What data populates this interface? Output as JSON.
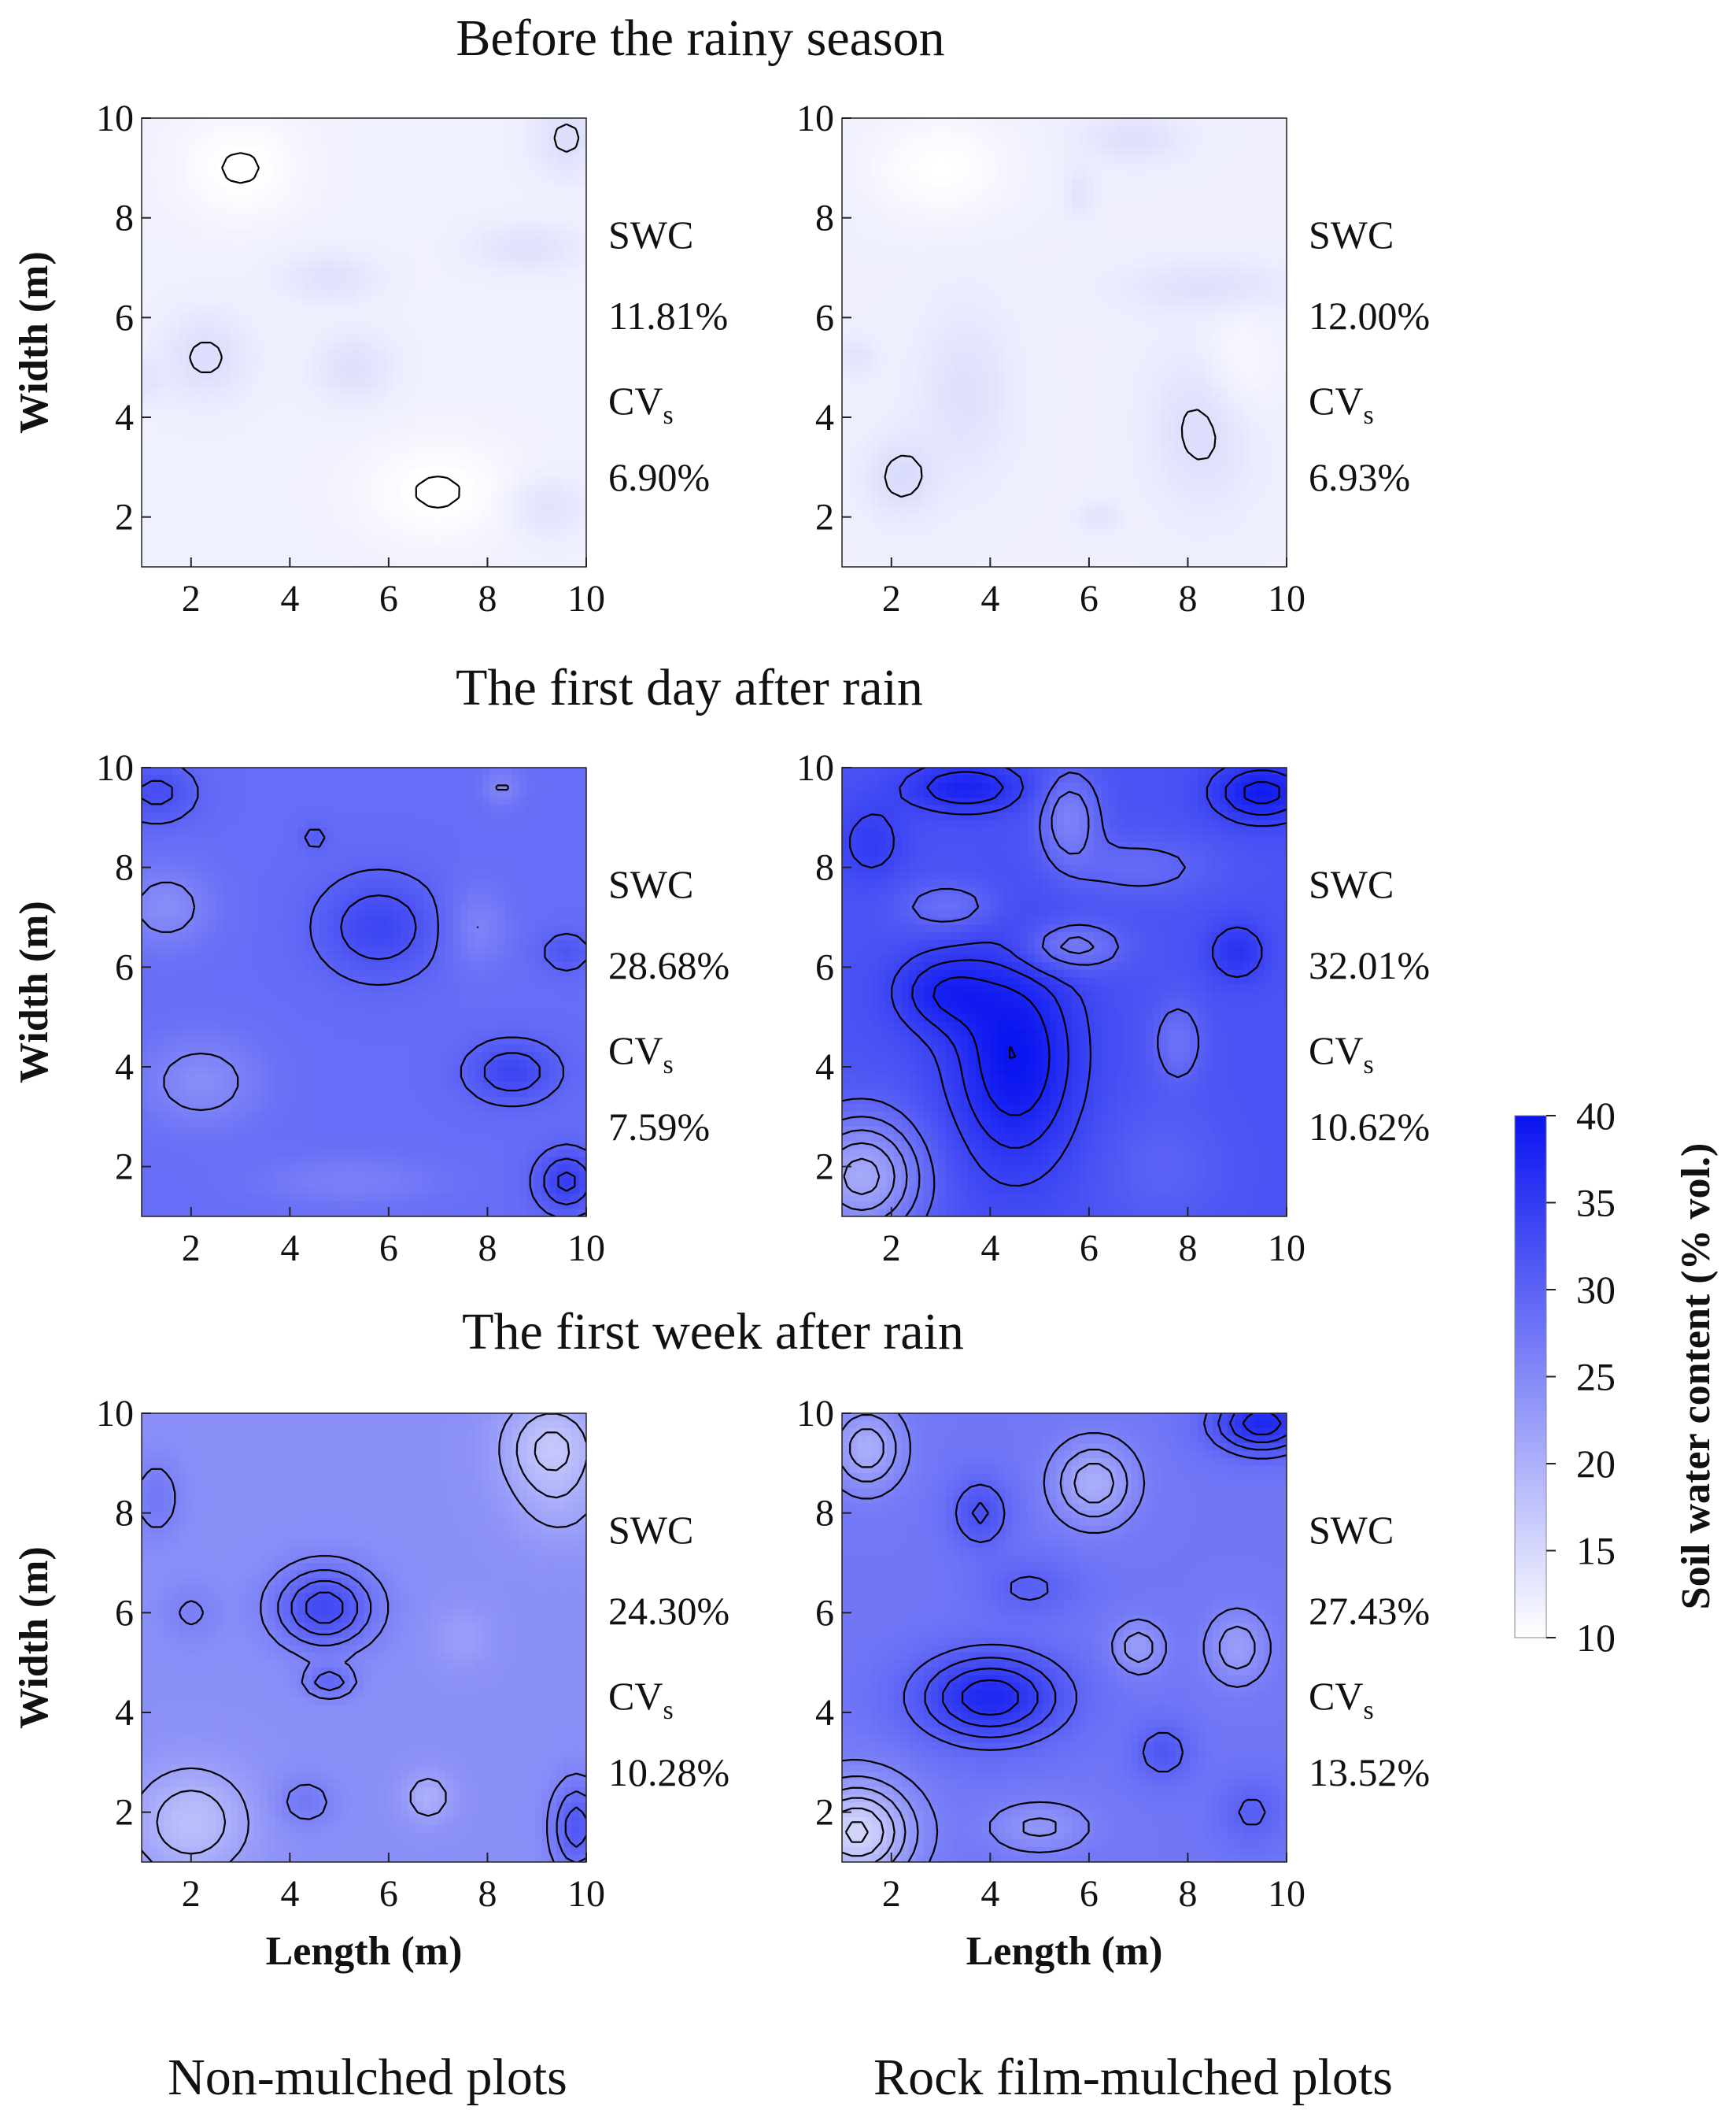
{
  "colors": {
    "low": "#ffffff",
    "high": "#0a14f0",
    "contour": "#000000"
  },
  "chart_data": {
    "type": "heatmap",
    "variable": "Soil water content",
    "row_titles": [
      "Before the rainy season",
      "The first day after rain",
      "The first week after rain"
    ],
    "column_titles": [
      "Non-mulched plots",
      "Rock film-mulched plots"
    ],
    "xlabel": "Length (m)",
    "ylabel": "Width (m)",
    "xlim": [
      1,
      10
    ],
    "ylim": [
      1,
      10
    ],
    "x_ticks": [
      "2",
      "4",
      "6",
      "8",
      "10"
    ],
    "y_ticks": [
      "2",
      "4",
      "6",
      "8",
      "10"
    ],
    "colorbar": {
      "label": "Soil water content (% vol.)",
      "min": 10,
      "max": 40,
      "ticks": [
        "10",
        "15",
        "20",
        "25",
        "30",
        "35",
        "40"
      ]
    },
    "panels": [
      {
        "row": 0,
        "col": 0,
        "swc_label": "SWC",
        "swc": "11.81%",
        "cv_label": "CV",
        "cv_sub": "s",
        "cv": "6.90%",
        "mean": 11.81,
        "blobs": [
          [
            2.3,
            5.2,
            0.9,
            0.9,
            2.5
          ],
          [
            5.3,
            5.0,
            0.8,
            0.7,
            2.2
          ],
          [
            4.8,
            6.8,
            1.0,
            0.5,
            2.0
          ],
          [
            8.8,
            7.4,
            1.1,
            0.5,
            2.0
          ],
          [
            9.6,
            9.6,
            0.7,
            0.8,
            2.5
          ],
          [
            9.2,
            2.2,
            0.8,
            0.6,
            2.0
          ],
          [
            1,
            4.7,
            0.4,
            0.5,
            1.5
          ],
          [
            3,
            9,
            1.2,
            1,
            -2
          ],
          [
            7,
            2.5,
            1.5,
            1,
            -2
          ]
        ]
      },
      {
        "row": 0,
        "col": 1,
        "swc_label": "SWC",
        "swc": "12.00%",
        "cv_label": "CV",
        "cv_sub": "s",
        "cv": "6.93%",
        "mean": 12.0,
        "blobs": [
          [
            2.2,
            2.8,
            0.7,
            0.8,
            2.5
          ],
          [
            3.5,
            4.5,
            0.9,
            1.6,
            2.0
          ],
          [
            8.3,
            3.8,
            1.0,
            1.5,
            2.5
          ],
          [
            8.4,
            6.6,
            1.6,
            0.5,
            2.0
          ],
          [
            6.9,
            9.6,
            1.0,
            0.5,
            2.0
          ],
          [
            5.8,
            8.5,
            0.3,
            0.5,
            1.5
          ],
          [
            6.2,
            2.0,
            0.4,
            0.3,
            1.5
          ],
          [
            1.3,
            5.2,
            0.4,
            0.4,
            1.5
          ],
          [
            3,
            9,
            1.4,
            1,
            -2
          ],
          [
            9,
            5,
            0.8,
            1.2,
            -1.5
          ]
        ]
      },
      {
        "row": 1,
        "col": 0,
        "swc_label": "SWC",
        "swc": "28.68%",
        "cv_label": "CV",
        "cv_sub": "s",
        "cv": "7.59%",
        "mean": 28.68,
        "blobs": [
          [
            5.8,
            6.8,
            1.2,
            1.0,
            5.0
          ],
          [
            8.5,
            3.9,
            0.9,
            0.6,
            5.0
          ],
          [
            9.6,
            1.7,
            0.6,
            0.6,
            6.0
          ],
          [
            1.3,
            9.5,
            0.8,
            0.6,
            4.0
          ],
          [
            2.2,
            3.7,
            1.2,
            0.9,
            -4.0
          ],
          [
            1.5,
            7.2,
            0.9,
            0.8,
            -4.0
          ],
          [
            7.8,
            6.8,
            0.6,
            0.8,
            -3.0
          ],
          [
            8.3,
            9.6,
            0.4,
            0.4,
            -3.0
          ],
          [
            4.5,
            8.6,
            0.3,
            0.3,
            2.0
          ],
          [
            9.6,
            6.3,
            0.5,
            0.4,
            3.0
          ],
          [
            5.2,
            1.7,
            1.8,
            0.5,
            -2.5
          ]
        ]
      },
      {
        "row": 1,
        "col": 1,
        "swc_label": "SWC",
        "swc": "32.01%",
        "cv_label": "CV",
        "cv_sub": "s",
        "cv": "10.62%",
        "mean": 32.01,
        "blobs": [
          [
            4.5,
            4.2,
            1.3,
            2.2,
            8.0
          ],
          [
            3.0,
            5.5,
            1.0,
            0.8,
            5.0
          ],
          [
            9.5,
            9.5,
            1.0,
            0.6,
            7.0
          ],
          [
            3.5,
            9.6,
            1.2,
            0.5,
            6.0
          ],
          [
            9.0,
            6.3,
            0.6,
            0.6,
            4.0
          ],
          [
            1.4,
            1.8,
            1.2,
            1.2,
            -11.0
          ],
          [
            5.6,
            9.0,
            0.6,
            0.9,
            -6.0
          ],
          [
            5.6,
            6.4,
            1.0,
            0.5,
            -6.0
          ],
          [
            7.8,
            4.5,
            0.5,
            0.8,
            -4.0
          ],
          [
            7.0,
            8.0,
            1.5,
            0.6,
            -3.0
          ],
          [
            1.6,
            8.5,
            0.7,
            0.8,
            3.0
          ],
          [
            7.5,
            2.0,
            1.2,
            1.2,
            -2.0
          ],
          [
            3.2,
            7.2,
            1.0,
            0.5,
            -4.0
          ]
        ]
      },
      {
        "row": 2,
        "col": 0,
        "swc_label": "SWC",
        "swc": "24.30%",
        "cv_label": "CV",
        "cv_sub": "s",
        "cv": "10.28%",
        "mean": 24.3,
        "blobs": [
          [
            4.7,
            6.1,
            1.0,
            0.8,
            9.0
          ],
          [
            4.8,
            4.6,
            0.5,
            0.3,
            5.0
          ],
          [
            2.0,
            1.8,
            1.2,
            1.1,
            -6.0
          ],
          [
            9.3,
            9.3,
            1.0,
            1.0,
            -7.0
          ],
          [
            9.8,
            1.7,
            0.5,
            0.9,
            7.0
          ],
          [
            4.3,
            2.2,
            0.6,
            0.5,
            3.0
          ],
          [
            1.3,
            8.3,
            0.5,
            0.8,
            3.0
          ],
          [
            2.0,
            6.0,
            0.6,
            0.6,
            2.0
          ],
          [
            6.8,
            2.3,
            0.5,
            0.5,
            -4.0
          ],
          [
            9.5,
            8.0,
            1.0,
            0.8,
            -2.0
          ],
          [
            7.5,
            5.5,
            0.6,
            0.6,
            -2.0
          ]
        ]
      },
      {
        "row": 2,
        "col": 1,
        "swc_label": "SWC",
        "swc": "27.43%",
        "cv_label": "CV",
        "cv_sub": "s",
        "cv": "13.52%",
        "mean": 27.43,
        "blobs": [
          [
            4.0,
            4.3,
            1.5,
            0.9,
            10.0
          ],
          [
            9.5,
            9.8,
            1.0,
            0.6,
            10.0
          ],
          [
            1.3,
            1.6,
            1.1,
            1.0,
            -12.0
          ],
          [
            1.5,
            9.3,
            0.7,
            0.8,
            -7.0
          ],
          [
            3.8,
            8.0,
            0.6,
            0.7,
            5.0
          ],
          [
            6.1,
            8.6,
            0.8,
            0.8,
            -7.0
          ],
          [
            9.0,
            5.3,
            0.6,
            0.7,
            -5.0
          ],
          [
            7.0,
            5.3,
            0.5,
            0.5,
            -5.0
          ],
          [
            5.0,
            1.7,
            1.0,
            0.5,
            -4.0
          ],
          [
            7.5,
            3.2,
            0.6,
            0.6,
            4.0
          ],
          [
            9.3,
            2.0,
            0.7,
            0.7,
            3.0
          ],
          [
            4.8,
            6.5,
            1.0,
            0.6,
            3.0
          ]
        ]
      }
    ]
  }
}
